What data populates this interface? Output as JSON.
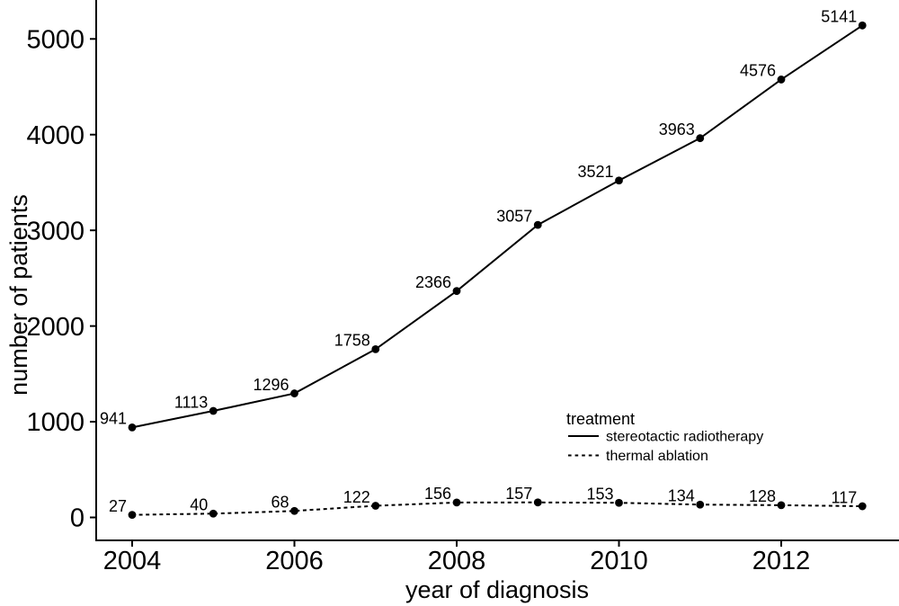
{
  "figure": {
    "background": "#ffffff",
    "line_color": "#000000",
    "text_color": "#000000"
  },
  "chart_data": {
    "type": "line",
    "title": "",
    "xlabel": "year of diagnosis",
    "ylabel": "number of patients",
    "x": [
      2004,
      2005,
      2006,
      2007,
      2008,
      2009,
      2010,
      2011,
      2012,
      2013
    ],
    "x_ticks": [
      2004,
      2006,
      2008,
      2010,
      2012
    ],
    "y_ticks": [
      0,
      1000,
      2000,
      3000,
      4000,
      5000
    ],
    "ylim": [
      0,
      5400
    ],
    "xlim": [
      2003.5,
      2013.5
    ],
    "grid": "off",
    "point_markers": "filled-circle",
    "point_labels_shown": true,
    "legend": {
      "title": "treatment",
      "position": "inside-right-middle",
      "items": [
        {
          "label": "stereotactic radiotherapy",
          "line_style": "solid"
        },
        {
          "label": "thermal ablation",
          "line_style": "dashed"
        }
      ]
    },
    "series": [
      {
        "name": "stereotactic radiotherapy",
        "line_style": "solid",
        "color": "#000000",
        "values": [
          941,
          1113,
          1296,
          1758,
          2366,
          3057,
          3521,
          3963,
          4576,
          5141
        ]
      },
      {
        "name": "thermal ablation",
        "line_style": "dashed",
        "color": "#000000",
        "values": [
          27,
          40,
          68,
          122,
          156,
          157,
          153,
          134,
          128,
          117
        ]
      }
    ]
  }
}
